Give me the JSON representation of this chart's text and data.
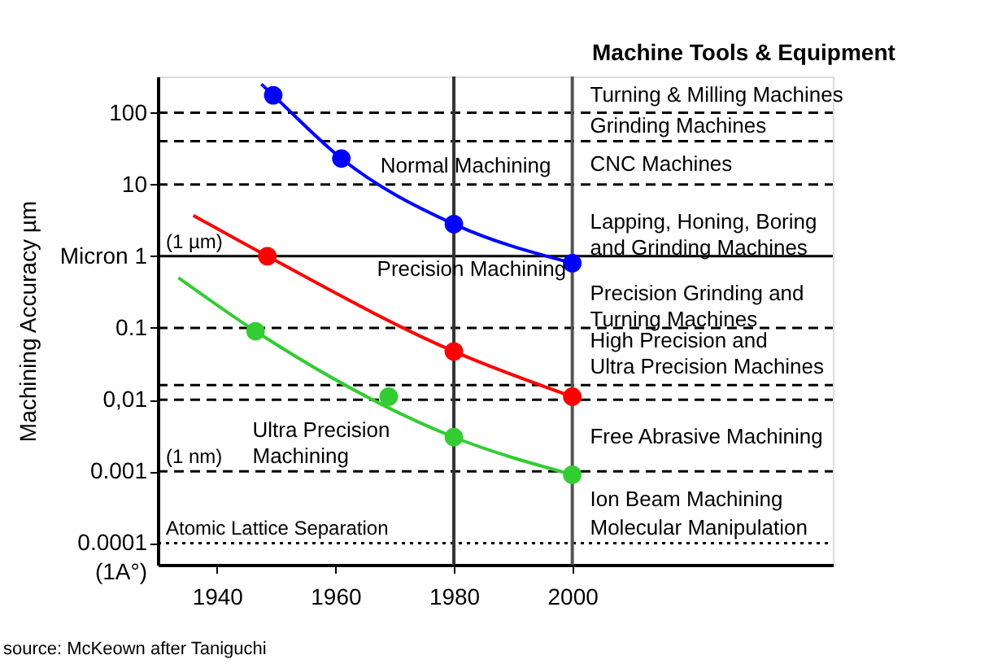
{
  "chart_data": {
    "type": "line",
    "title": "Machine Tools & Equipment",
    "ylabel": "Machining Accuracy µm",
    "log": "y",
    "xlim": [
      1930,
      2044
    ],
    "xticks": [
      1940,
      1960,
      1980,
      2000
    ],
    "ylim": [
      5e-05,
      320
    ],
    "yticks": [
      100,
      10,
      {
        "value": 1,
        "label": "Micron 1"
      },
      0.1,
      {
        "value": 0.01,
        "label": "0,01"
      },
      0.001,
      {
        "value": 0.0001,
        "label": "0.0001\n(1A°)"
      }
    ],
    "grid": false,
    "series": [
      {
        "color": "#0000ff",
        "marker": "none",
        "x": [
          1947.5,
          1949.5,
          1961,
          1980,
          2000
        ],
        "values": [
          250,
          175,
          23,
          2.8,
          0.8
        ]
      },
      {
        "color": "#ff0000",
        "marker": "none",
        "x": [
          1936,
          1948.5,
          1980,
          2000
        ],
        "values": [
          3.7,
          1,
          0.047,
          0.011
        ]
      },
      {
        "color": "#33cc33",
        "marker": "none",
        "x": [
          1933.5,
          1946.5,
          1980,
          2000
        ],
        "values": [
          0.5,
          0.09,
          0.003,
          0.0009
        ]
      },
      {
        "type": "scatter",
        "color": "#0000ff",
        "marker": "circle",
        "x": [
          1949.5,
          1961,
          1980,
          2000
        ],
        "values": [
          175,
          23,
          2.8,
          0.8
        ]
      },
      {
        "type": "scatter",
        "color": "#ff0000",
        "marker": "circle",
        "x": [
          1948.5,
          1980,
          2000
        ],
        "values": [
          1,
          0.047,
          0.011
        ]
      },
      {
        "type": "scatter",
        "color": "#33cc33",
        "marker": "circle",
        "x": [
          1946.5,
          1969,
          1980,
          2000
        ],
        "values": [
          0.09,
          0.011,
          0.003,
          0.0009
        ]
      }
    ],
    "ref_lines": [
      {
        "axis": "y",
        "value": 100,
        "line_style": "dashed"
      },
      {
        "axis": "y",
        "value": 40,
        "line_style": "dashed"
      },
      {
        "axis": "y",
        "value": 10,
        "line_style": "dashed"
      },
      {
        "axis": "y",
        "value": 1,
        "line_style": "solid",
        "label": "(1 µm)"
      },
      {
        "axis": "y",
        "value": 0.1,
        "line_style": "dashed"
      },
      {
        "axis": "y",
        "value": 0.016,
        "line_style": "dashed"
      },
      {
        "axis": "y",
        "value": 0.01,
        "line_style": "dashed"
      },
      {
        "axis": "y",
        "value": 0.001,
        "line_style": "dashed",
        "label": "(1 nm)"
      },
      {
        "axis": "y",
        "value": 0.0001,
        "line_style": "dotted",
        "label": "Atomic Lattice Separation"
      },
      {
        "axis": "x",
        "value": 1980,
        "line_style": "solid",
        "color": "#333333"
      },
      {
        "axis": "x",
        "value": 2000,
        "line_style": "solid",
        "color": "#555555"
      }
    ],
    "annotations": [
      "Turning & Milling Machines",
      "Grinding Machines",
      "CNC Machines",
      "Lapping, Honing, Boring\nand Grinding Machines",
      "Precision Grinding and\nTurning Machines",
      "High Precision and\nUltra Precision Machines",
      "Free Abrasive Machining",
      "Ion Beam Machining",
      "Molecular Manipulation",
      "Normal Machining",
      "Precision Machining",
      "Ultra Precision\nMachining",
      "source: McKeown after Taniguchi"
    ]
  }
}
